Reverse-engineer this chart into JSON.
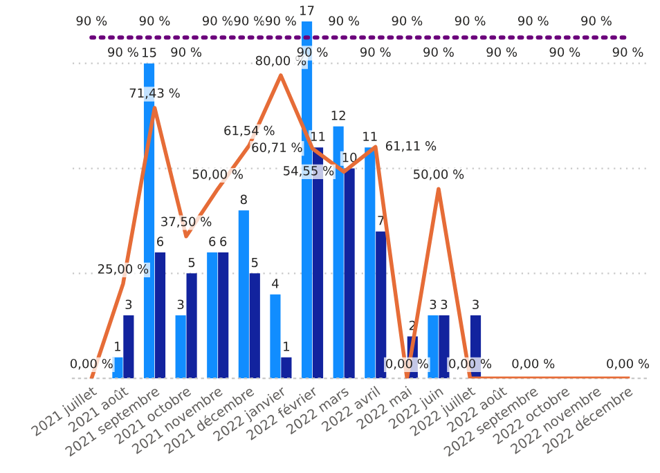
{
  "chart_data": {
    "type": "bar",
    "categories": [
      "2021 juillet",
      "2021 août",
      "2021 septembre",
      "2021 octobre",
      "2021 novembre",
      "2021 décembre",
      "2022 janvier",
      "2022 février",
      "2022 mars",
      "2022 avril",
      "2022 mai",
      "2022 juin",
      "2022 juillet",
      "2022 août",
      "2022 septembre",
      "2022 octobre",
      "2022 novembre",
      "2022 décembre"
    ],
    "series": [
      {
        "color": "#118dff",
        "values": [
          null,
          1,
          15,
          3,
          6,
          8,
          4,
          17,
          12,
          11,
          null,
          3,
          null,
          null,
          null,
          null,
          null,
          null
        ],
        "value_labels": [
          null,
          "1",
          "15",
          "3",
          "6",
          "8",
          "4",
          "17",
          "12",
          "11",
          null,
          "3",
          null,
          null,
          null,
          null,
          null,
          null
        ]
      },
      {
        "color": "#12239e",
        "values": [
          null,
          3,
          6,
          5,
          6,
          5,
          1,
          11,
          10,
          7,
          2,
          3,
          3,
          null,
          null,
          null,
          null,
          null
        ],
        "value_labels": [
          null,
          "3",
          "6",
          "5",
          "6",
          "5",
          "1",
          "11",
          "10",
          "7",
          "2",
          "3",
          "3",
          null,
          null,
          null,
          null,
          null
        ]
      },
      {
        "type": "line",
        "axis": "y2",
        "color": "#e66c37",
        "line_style": "solid",
        "values": [
          0,
          25,
          71.43,
          37.5,
          50,
          61.54,
          80,
          60.71,
          54.55,
          61.11,
          0,
          50,
          0,
          0,
          0,
          0,
          0,
          0
        ],
        "value_labels": [
          "0,00 %",
          "25,00 %",
          "71,43 %",
          "37,50 %",
          "50,00 %",
          "61,54 %",
          "80,00 %",
          "60,71 %",
          "54,55 %",
          "61,11 %",
          "0,00 %",
          "50,00 %",
          "0,00 %",
          null,
          "0,00 %",
          null,
          null,
          "0,00 %"
        ]
      },
      {
        "type": "line",
        "axis": "y2",
        "color": "#6b007b",
        "line_style": "dotted",
        "values": [
          90,
          90,
          90,
          90,
          90,
          90,
          90,
          90,
          90,
          90,
          90,
          90,
          90,
          90,
          90,
          90,
          90,
          90
        ],
        "value_labels": [
          "90 %",
          "90 %",
          "90 %",
          "90 %",
          "90 %",
          "90 %",
          "90 %",
          "90 %",
          "90 %",
          "90 %",
          "90 %",
          "90 %",
          "90 %",
          "90 %",
          "90 %",
          "90 %",
          "90 %",
          "90 %"
        ]
      }
    ],
    "yticks": [
      {
        "value": 0,
        "label": null
      },
      {
        "value": 5,
        "label": null
      },
      {
        "value": 10,
        "label": null
      },
      {
        "value": 15,
        "label": null
      }
    ],
    "grid": "y",
    "tick_labels": "x"
  }
}
